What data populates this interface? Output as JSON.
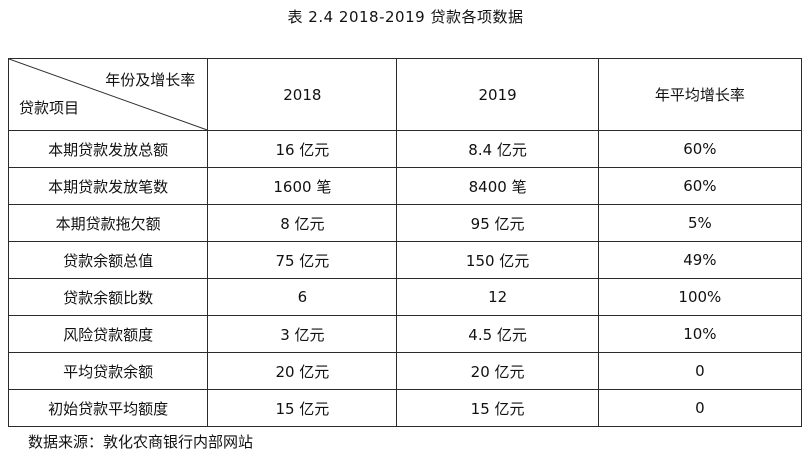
{
  "caption": "表 2.4   2018-2019 贷款各项数据",
  "table": {
    "header": {
      "diag_top": "年份及增长率",
      "diag_bottom": "贷款项目",
      "columns": [
        "2018",
        "2019",
        "年平均增长率"
      ]
    },
    "rows": [
      [
        "本期贷款发放总额",
        "16 亿元",
        "8.4 亿元",
        "60%"
      ],
      [
        "本期贷款发放笔数",
        "1600 笔",
        "8400 笔",
        "60%"
      ],
      [
        "本期贷款拖欠额",
        "8 亿元",
        "95 亿元",
        "5%"
      ],
      [
        "贷款余额总值",
        "75 亿元",
        "150 亿元",
        "49%"
      ],
      [
        "贷款余额比数",
        "6",
        "12",
        "100%"
      ],
      [
        "风险贷款额度",
        "3 亿元",
        "4.5 亿元",
        "10%"
      ],
      [
        "平均贷款余额",
        "20 亿元",
        "20 亿元",
        "0"
      ],
      [
        "初始贷款平均额度",
        "15 亿元",
        "15 亿元",
        "0"
      ]
    ]
  },
  "source": "数据来源：敦化农商银行内部网站"
}
